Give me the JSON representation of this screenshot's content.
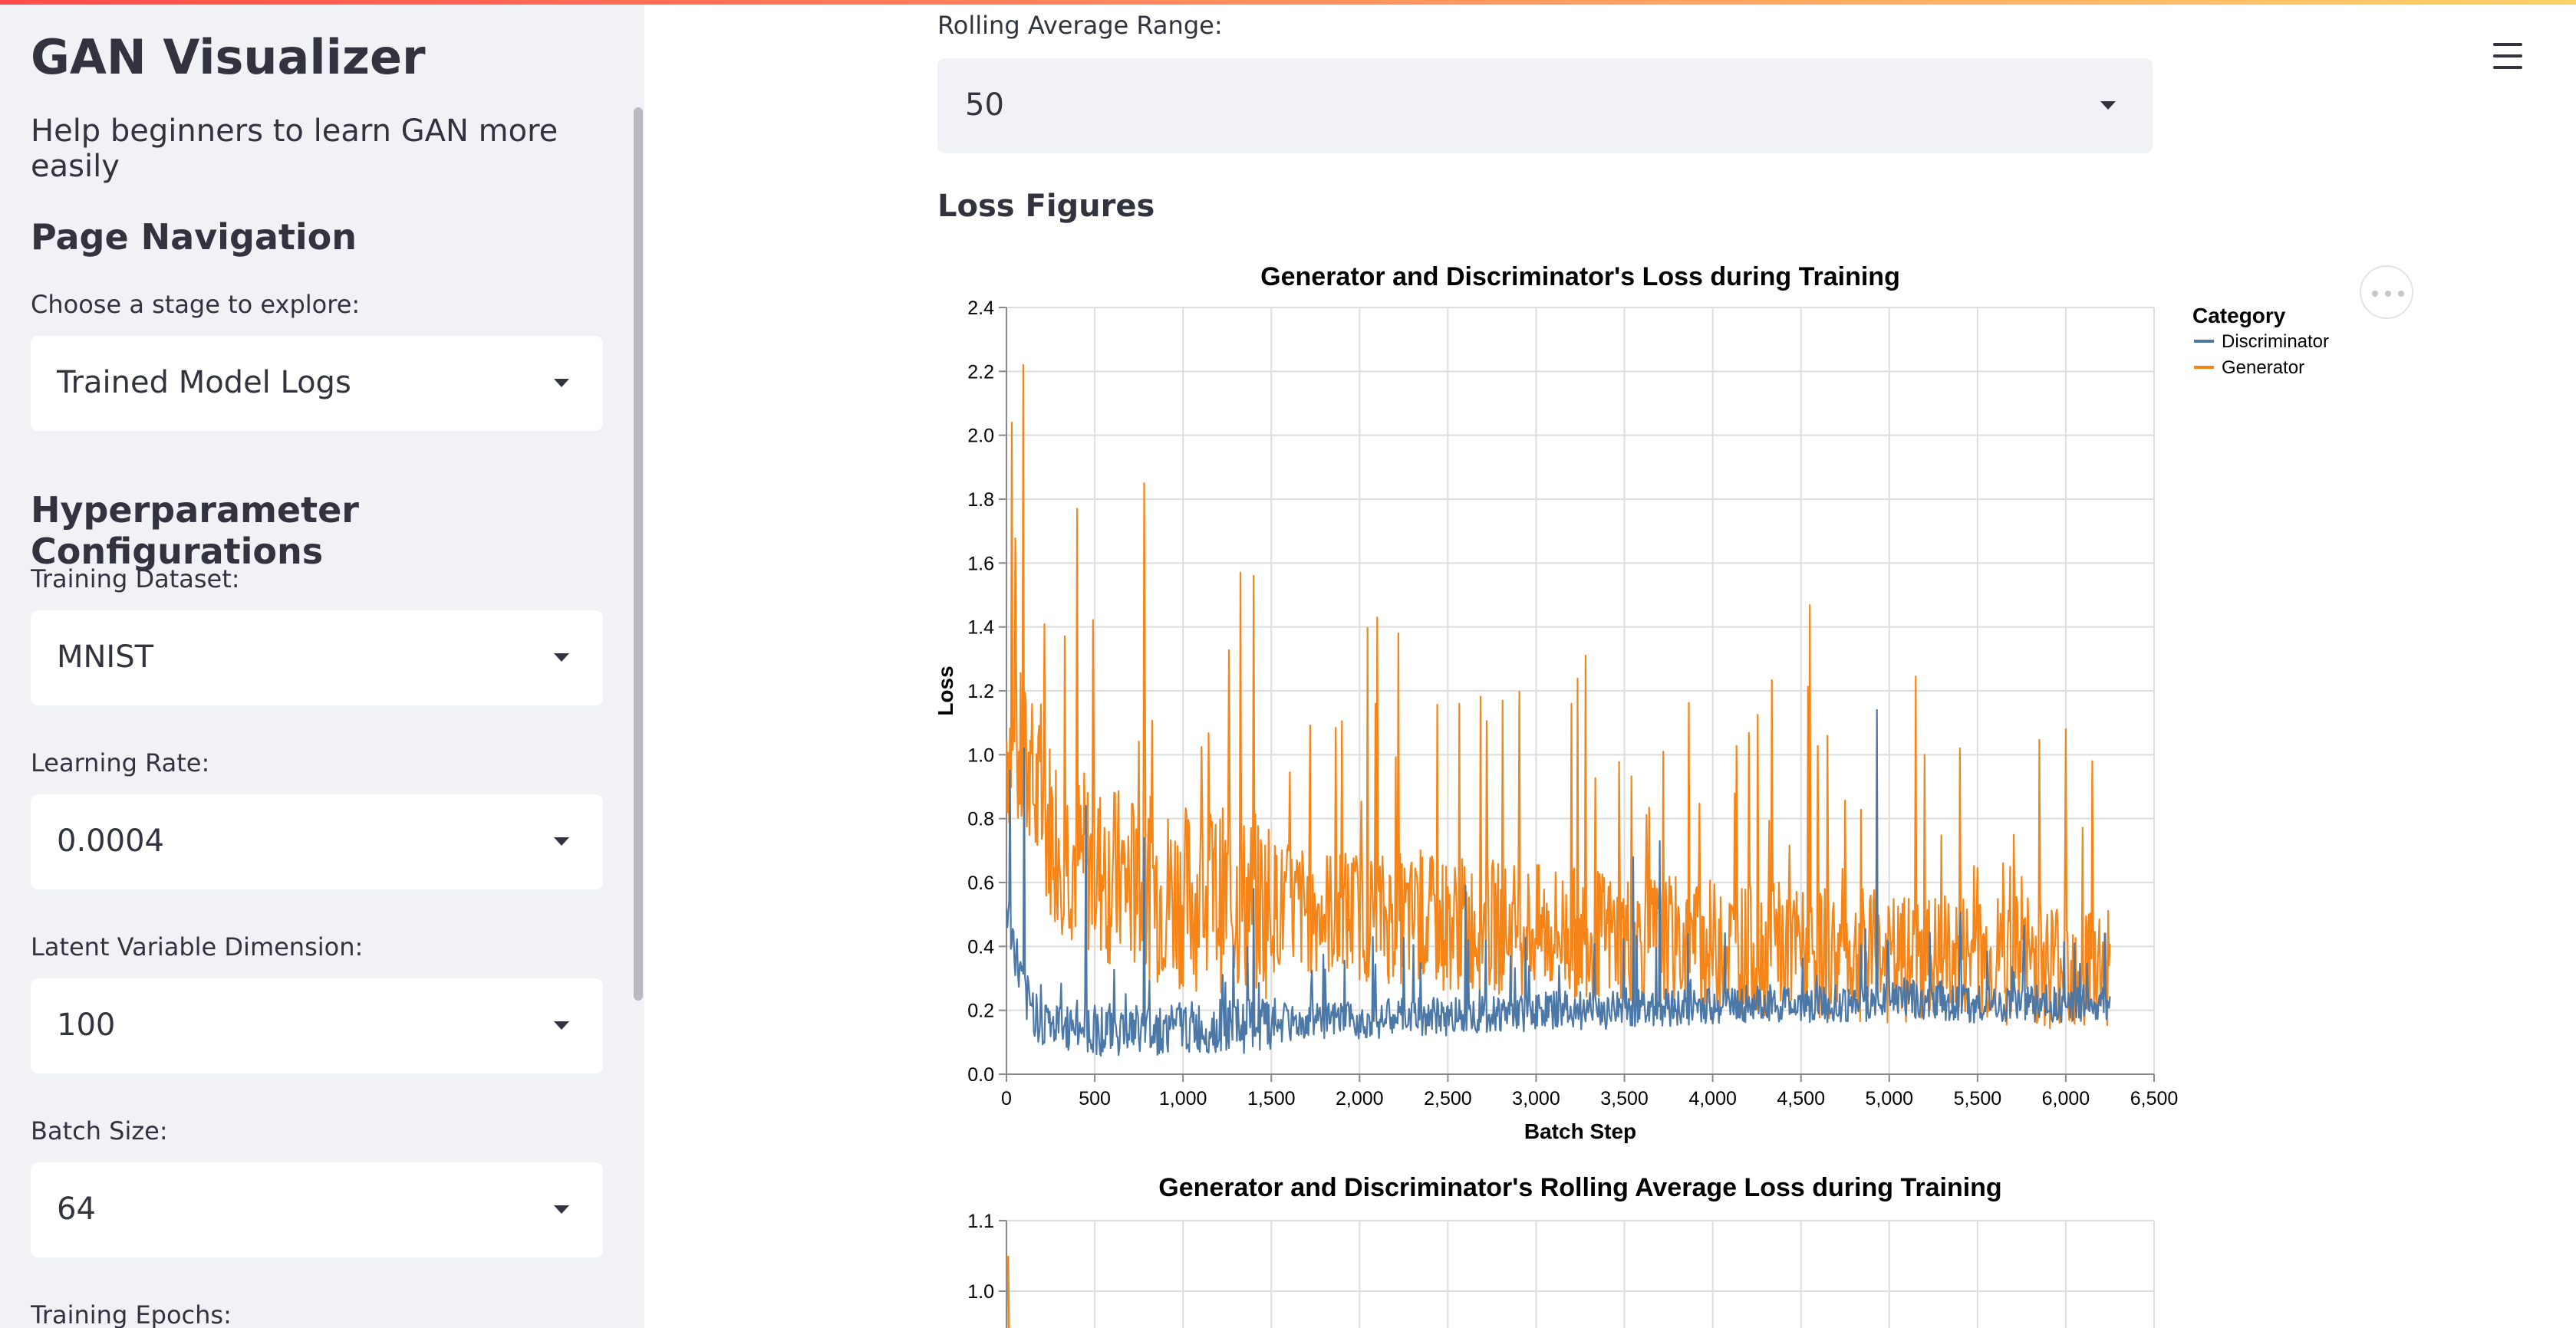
{
  "sidebar": {
    "title": "GAN Visualizer",
    "subtitle": "Help beginners to learn GAN more easily",
    "nav_heading": "Page Navigation",
    "stage_label": "Choose a stage to explore:",
    "stage_value": "Trained Model Logs",
    "hyper_heading": "Hyperparameter Configurations",
    "dataset_label": "Training Dataset:",
    "dataset_value": "MNIST",
    "lr_label": "Learning Rate:",
    "lr_value": "0.0004",
    "latent_label": "Latent Variable Dimension:",
    "latent_value": "100",
    "batch_label": "Batch Size:",
    "batch_value": "64",
    "epochs_label": "Training Epochs:"
  },
  "main": {
    "rolling_label": "Rolling Average Range:",
    "rolling_value": "50",
    "loss_heading": "Loss Figures"
  },
  "icons": [
    "hamburger-menu-icon",
    "more-actions-icon",
    "chevron-down-icon"
  ],
  "colors": {
    "accent_red": "#ff4b4b",
    "sidebar_bg": "#f0f2f6",
    "discriminator": "#4c78a8",
    "generator": "#f58518"
  },
  "chart_data": [
    {
      "type": "line",
      "title": "Generator and Discriminator's Loss during Training",
      "xlabel": "Batch Step",
      "ylabel": "Loss",
      "xlim": [
        0,
        6500
      ],
      "ylim": [
        0,
        2.4
      ],
      "xticks": [
        "0",
        "500",
        "1,000",
        "1,500",
        "2,000",
        "2,500",
        "3,000",
        "3,500",
        "4,000",
        "4,500",
        "5,000",
        "5,500",
        "6,000",
        "6,500"
      ],
      "yticks": [
        "0.0",
        "0.2",
        "0.4",
        "0.6",
        "0.8",
        "1.0",
        "1.2",
        "1.4",
        "1.6",
        "1.8",
        "2.0",
        "2.2",
        "2.4"
      ],
      "grid": true,
      "legend": {
        "title": "Category",
        "placement": "top-right"
      },
      "series": [
        {
          "name": "Discriminator",
          "x": [
            0,
            100,
            200,
            300,
            400,
            500,
            600,
            700,
            800,
            900,
            1000,
            1100,
            1200,
            1300,
            1400,
            1500,
            1600,
            1700,
            1800,
            1900,
            2000,
            2100,
            2200,
            2300,
            2400,
            2500,
            2600,
            2700,
            2800,
            2900,
            3000,
            3100,
            3200,
            3300,
            3400,
            3500,
            3600,
            3700,
            3800,
            3900,
            4000,
            4100,
            4200,
            4300,
            4400,
            4500,
            4600,
            4700,
            4800,
            4900,
            5000,
            5100,
            5200,
            5300,
            5400,
            5500,
            5600,
            5700,
            5800,
            5900,
            6000,
            6100,
            6200,
            6250
          ],
          "values": [
            0.52,
            0.24,
            0.17,
            0.14,
            0.15,
            0.14,
            0.14,
            0.14,
            0.14,
            0.14,
            0.15,
            0.14,
            0.15,
            0.15,
            0.15,
            0.15,
            0.16,
            0.16,
            0.16,
            0.17,
            0.17,
            0.17,
            0.18,
            0.18,
            0.18,
            0.18,
            0.19,
            0.19,
            0.19,
            0.19,
            0.2,
            0.2,
            0.2,
            0.2,
            0.2,
            0.21,
            0.21,
            0.21,
            0.21,
            0.21,
            0.21,
            0.22,
            0.22,
            0.22,
            0.22,
            0.22,
            0.22,
            0.22,
            0.22,
            0.22,
            0.25,
            0.24,
            0.23,
            0.23,
            0.22,
            0.22,
            0.22,
            0.22,
            0.22,
            0.22,
            0.22,
            0.22,
            0.22,
            0.22
          ],
          "peaks": [
            [
              20,
              0.95
            ],
            [
              100,
              1.02
            ],
            [
              450,
              0.84
            ],
            [
              780,
              0.74
            ],
            [
              1400,
              0.58
            ],
            [
              2600,
              0.59
            ],
            [
              3550,
              0.68
            ],
            [
              3700,
              0.73
            ],
            [
              4930,
              1.14
            ],
            [
              5400,
              0.43
            ],
            [
              6050,
              0.41
            ]
          ]
        },
        {
          "name": "Generator",
          "x": [
            0,
            100,
            200,
            300,
            400,
            500,
            600,
            700,
            800,
            900,
            1000,
            1100,
            1200,
            1300,
            1400,
            1500,
            1600,
            1700,
            1800,
            1900,
            2000,
            2100,
            2200,
            2300,
            2400,
            2500,
            2600,
            2700,
            2800,
            2900,
            3000,
            3100,
            3200,
            3300,
            3400,
            3500,
            3600,
            3700,
            3800,
            3900,
            4000,
            4100,
            4200,
            4300,
            4400,
            4500,
            4600,
            4700,
            4800,
            4900,
            5000,
            5100,
            5200,
            5300,
            5400,
            5500,
            5600,
            5700,
            5800,
            5900,
            6000,
            6100,
            6200,
            6250
          ],
          "values": [
            1.05,
            0.95,
            0.82,
            0.74,
            0.68,
            0.64,
            0.62,
            0.6,
            0.58,
            0.57,
            0.56,
            0.55,
            0.55,
            0.54,
            0.53,
            0.53,
            0.52,
            0.52,
            0.51,
            0.5,
            0.5,
            0.49,
            0.49,
            0.48,
            0.48,
            0.47,
            0.47,
            0.47,
            0.46,
            0.46,
            0.45,
            0.45,
            0.44,
            0.44,
            0.43,
            0.43,
            0.42,
            0.42,
            0.41,
            0.41,
            0.4,
            0.4,
            0.39,
            0.39,
            0.39,
            0.38,
            0.38,
            0.38,
            0.37,
            0.37,
            0.35,
            0.35,
            0.35,
            0.36,
            0.36,
            0.36,
            0.36,
            0.36,
            0.36,
            0.35,
            0.35,
            0.35,
            0.35,
            0.35
          ],
          "peaks": [
            [
              30,
              2.04
            ],
            [
              95,
              2.22
            ],
            [
              400,
              1.77
            ],
            [
              780,
              1.85
            ],
            [
              1325,
              1.57
            ],
            [
              1400,
              1.56
            ],
            [
              2100,
              1.43
            ],
            [
              2220,
              1.38
            ],
            [
              3200,
              1.16
            ],
            [
              3720,
              1.01
            ],
            [
              4930,
              1.1
            ],
            [
              5200,
              1.0
            ],
            [
              5400,
              1.02
            ],
            [
              6000,
              1.08
            ],
            [
              6150,
              0.98
            ]
          ]
        }
      ]
    },
    {
      "type": "line",
      "title": "Generator and Discriminator's Rolling Average Loss during Training",
      "xlim": [
        0,
        6500
      ],
      "ylim_visible": [
        1.0,
        1.1
      ],
      "yticks": [
        "1.1",
        "1.0"
      ],
      "grid": true,
      "series": [
        {
          "name": "Generator",
          "x": [
            0
          ],
          "values": [
            1.05
          ]
        }
      ]
    }
  ]
}
